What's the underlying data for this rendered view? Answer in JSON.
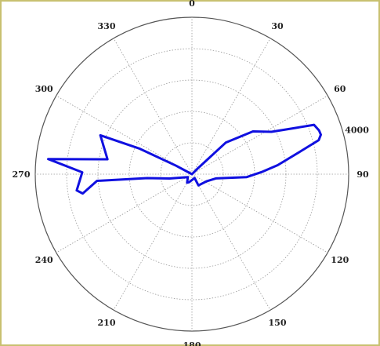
{
  "chart_data": {
    "type": "polar-line",
    "title": "",
    "angle_unit": "degrees",
    "angle_zero": "top",
    "angle_direction": "clockwise",
    "r_max": 4000,
    "r_grid": [
      800,
      1600,
      2400,
      3200,
      4000
    ],
    "r_tick_labels": [
      {
        "angle": 75,
        "label": "4000"
      }
    ],
    "angle_ticks": [
      {
        "angle": 0,
        "label": "0"
      },
      {
        "angle": 30,
        "label": "30"
      },
      {
        "angle": 60,
        "label": "60"
      },
      {
        "angle": 90,
        "label": "90"
      },
      {
        "angle": 120,
        "label": "120"
      },
      {
        "angle": 150,
        "label": "150"
      },
      {
        "angle": 180,
        "label": "180"
      },
      {
        "angle": 210,
        "label": "210"
      },
      {
        "angle": 240,
        "label": "240"
      },
      {
        "angle": 270,
        "label": "270"
      },
      {
        "angle": 300,
        "label": "300"
      },
      {
        "angle": 330,
        "label": "330"
      }
    ],
    "grid": true,
    "series": [
      {
        "color": "#1010e0",
        "points": [
          [
            0,
            0
          ],
          [
            45,
            200
          ],
          [
            47,
            1180
          ],
          [
            55,
            1900
          ],
          [
            62,
            2300
          ],
          [
            66,
            2900
          ],
          [
            68,
            3360
          ],
          [
            71,
            3430
          ],
          [
            73,
            3440
          ],
          [
            75,
            3350
          ],
          [
            78,
            2850
          ],
          [
            84,
            2200
          ],
          [
            88,
            1800
          ],
          [
            93,
            1400
          ],
          [
            100,
            620
          ],
          [
            115,
            420
          ],
          [
            150,
            330
          ],
          [
            145,
            120
          ],
          [
            200,
            220
          ],
          [
            210,
            250
          ],
          [
            235,
            130
          ],
          [
            259,
            580
          ],
          [
            265,
            1150
          ],
          [
            266,
            2430
          ],
          [
            260,
            2830
          ],
          [
            262,
            2970
          ],
          [
            271,
            2800
          ],
          [
            276,
            3690
          ],
          [
            280,
            2190
          ],
          [
            293,
            2540
          ],
          [
            296,
            1480
          ],
          [
            298,
            460
          ],
          [
            300,
            0
          ],
          [
            0,
            0
          ]
        ]
      }
    ],
    "legend": "none"
  }
}
